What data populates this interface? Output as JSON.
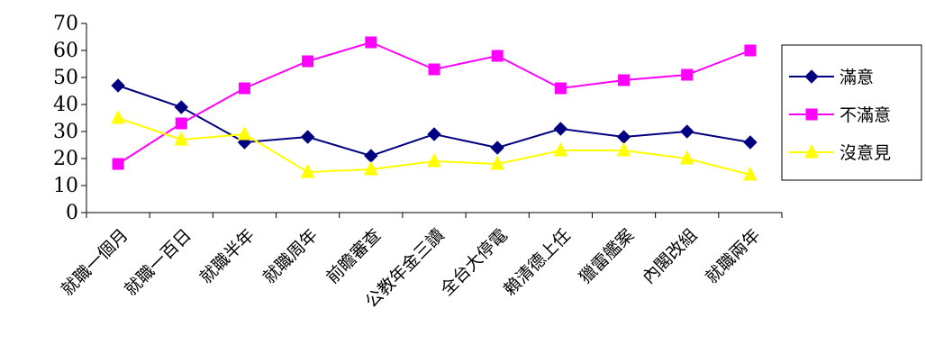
{
  "chart_data": {
    "type": "line",
    "title": "",
    "xlabel": "",
    "ylabel": "",
    "ylim": [
      0,
      70
    ],
    "yticks": [
      0,
      10,
      20,
      30,
      40,
      50,
      60,
      70
    ],
    "grid": false,
    "legend_position": "right",
    "categories": [
      "就職一個月",
      "就職一百日",
      "就職半年",
      "就職周年",
      "前瞻審查",
      "公教年金三讀",
      "全台大停電",
      "賴清德上任",
      "獵雷艦案",
      "內閣改組",
      "就職兩年"
    ],
    "series": [
      {
        "name": "滿意",
        "color": "#000080",
        "marker": "diamond",
        "values": [
          47,
          39,
          26,
          28,
          21,
          29,
          24,
          31,
          28,
          30,
          26
        ]
      },
      {
        "name": "不滿意",
        "color": "#ff00ff",
        "marker": "square",
        "values": [
          18,
          33,
          46,
          56,
          63,
          53,
          58,
          46,
          49,
          51,
          60
        ]
      },
      {
        "name": "沒意見",
        "color": "#ffff00",
        "marker": "triangle",
        "values": [
          35,
          27,
          29,
          15,
          16,
          19,
          18,
          23,
          23,
          20,
          14
        ]
      }
    ]
  }
}
